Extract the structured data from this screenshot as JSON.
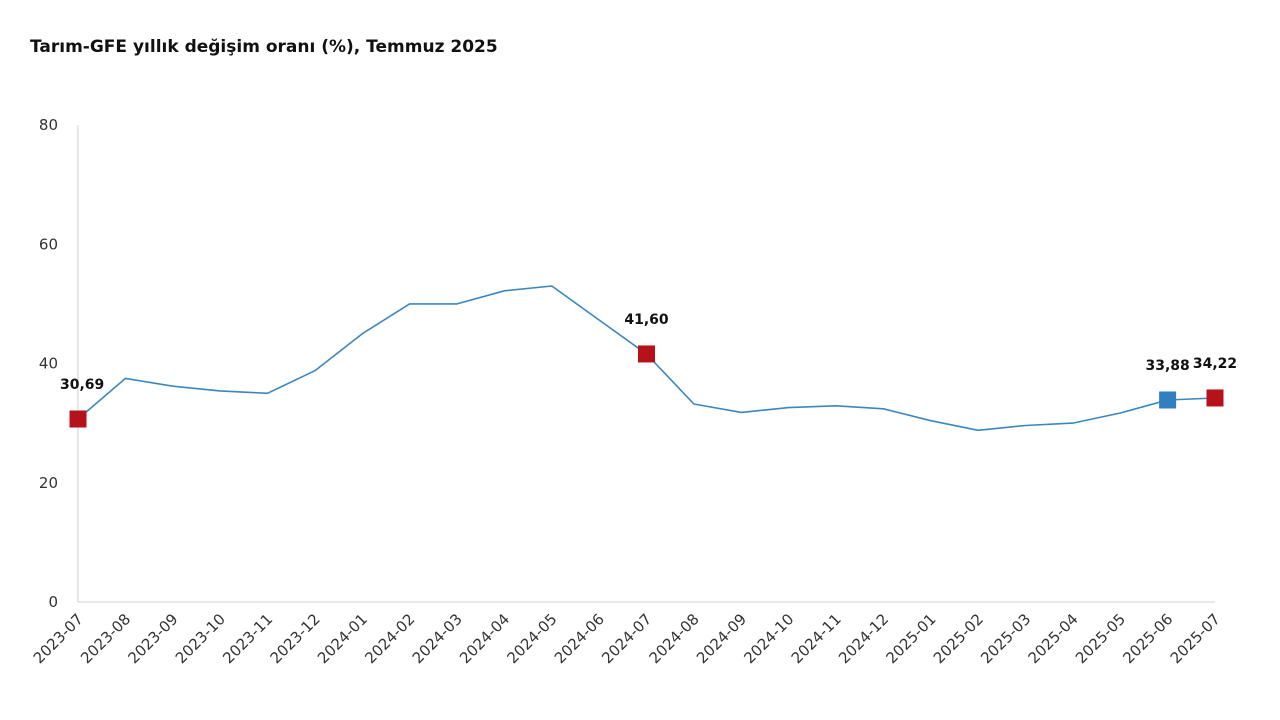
{
  "chart_data": {
    "type": "line",
    "title": "Tarım-GFE yıllık değişim oranı (%), Temmuz 2025",
    "xlabel": "",
    "ylabel": "",
    "ylim": [
      0,
      80
    ],
    "yticks": [
      "0",
      "20",
      "40",
      "60",
      "80"
    ],
    "grid": false,
    "categories": [
      "2023-07",
      "2023-08",
      "2023-09",
      "2023-10",
      "2023-11",
      "2023-12",
      "2024-01",
      "2024-02",
      "2024-03",
      "2024-04",
      "2024-05",
      "2024-06",
      "2024-07",
      "2024-08",
      "2024-09",
      "2024-10",
      "2024-11",
      "2024-12",
      "2025-01",
      "2025-02",
      "2025-03",
      "2025-04",
      "2025-05",
      "2025-06",
      "2025-07"
    ],
    "series": [
      {
        "values": [
          30.69,
          37.5,
          36.2,
          35.4,
          35.0,
          38.8,
          45.0,
          50.0,
          50.0,
          52.2,
          53.0,
          47.3,
          41.6,
          33.2,
          31.8,
          32.6,
          32.9,
          32.4,
          30.4,
          28.8,
          29.6,
          30.0,
          31.7,
          33.88,
          34.22
        ],
        "color": "#3a87c0"
      }
    ],
    "highlights": [
      {
        "index": 0,
        "label": "30,69",
        "color": "#b5121b"
      },
      {
        "index": 12,
        "label": "41,60",
        "color": "#b5121b"
      },
      {
        "index": 23,
        "label": "33,88",
        "color": "#2f7fc1"
      },
      {
        "index": 24,
        "label": "34,22",
        "color": "#b5121b"
      }
    ]
  }
}
